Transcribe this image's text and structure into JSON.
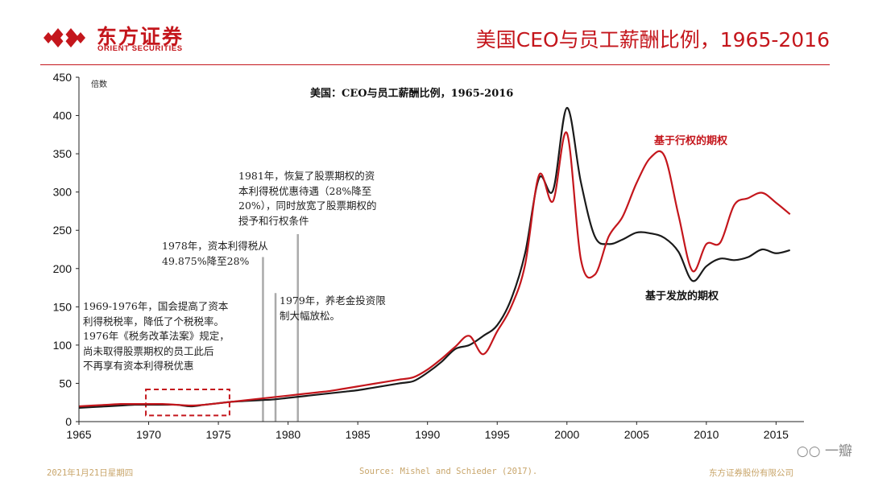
{
  "header": {
    "logo_cn": "东方证券",
    "logo_en": "ORIENT SECURITIES",
    "slide_title": "美国CEO与员工薪酬比例，1965-2016",
    "brand_color": "#c4161c"
  },
  "chart_data": {
    "type": "line",
    "title": "美国：CEO与员工薪酬比例，1965-2016",
    "ylabel": "倍数",
    "xlabel": "",
    "xlim": [
      1965,
      2017
    ],
    "ylim": [
      0,
      450
    ],
    "x_ticks": [
      1965,
      1970,
      1975,
      1980,
      1985,
      1990,
      1995,
      2000,
      2005,
      2010,
      2015
    ],
    "y_ticks": [
      0,
      50,
      100,
      150,
      200,
      250,
      300,
      350,
      400,
      450
    ],
    "series": [
      {
        "name": "基于行权的期权",
        "color": "#c4161c",
        "x": [
          1965,
          1966,
          1967,
          1968,
          1969,
          1970,
          1971,
          1972,
          1973,
          1974,
          1975,
          1976,
          1977,
          1978,
          1979,
          1980,
          1981,
          1982,
          1983,
          1984,
          1985,
          1986,
          1987,
          1988,
          1989,
          1990,
          1991,
          1992,
          1993,
          1994,
          1995,
          1996,
          1997,
          1998,
          1999,
          2000,
          2001,
          2002,
          2003,
          2004,
          2005,
          2006,
          2007,
          2008,
          2009,
          2010,
          2011,
          2012,
          2013,
          2014,
          2015,
          2016
        ],
        "values": [
          20,
          21,
          22,
          23,
          23,
          23,
          23,
          22,
          21,
          22,
          24,
          26,
          28,
          30,
          32,
          34,
          36,
          38,
          40,
          43,
          46,
          49,
          52,
          55,
          58,
          68,
          82,
          98,
          112,
          88,
          118,
          150,
          205,
          322,
          288,
          377,
          212,
          192,
          242,
          268,
          312,
          345,
          347,
          270,
          197,
          232,
          234,
          283,
          292,
          299,
          286,
          271
        ]
      },
      {
        "name": "基于发放的期权",
        "color": "#1a1a1a",
        "x": [
          1965,
          1966,
          1967,
          1968,
          1969,
          1970,
          1971,
          1972,
          1973,
          1974,
          1975,
          1976,
          1977,
          1978,
          1979,
          1980,
          1981,
          1982,
          1983,
          1984,
          1985,
          1986,
          1987,
          1988,
          1989,
          1990,
          1991,
          1992,
          1993,
          1994,
          1995,
          1996,
          1997,
          1998,
          1999,
          2000,
          2001,
          2002,
          2003,
          2004,
          2005,
          2006,
          2007,
          2008,
          2009,
          2010,
          2011,
          2012,
          2013,
          2014,
          2015,
          2016
        ],
        "values": [
          18,
          19,
          20,
          21,
          22,
          22,
          22,
          22,
          20,
          22,
          24,
          26,
          27,
          28,
          29,
          31,
          33,
          35,
          37,
          39,
          41,
          44,
          47,
          50,
          53,
          64,
          78,
          95,
          100,
          112,
          126,
          160,
          220,
          318,
          302,
          410,
          313,
          242,
          232,
          238,
          247,
          246,
          240,
          222,
          184,
          203,
          213,
          211,
          215,
          225,
          220,
          224
        ]
      }
    ],
    "event_lines": [
      {
        "x": 1978.2,
        "y": 215
      },
      {
        "x": 1979.1,
        "y": 168
      },
      {
        "x": 1980.7,
        "y": 245
      }
    ],
    "highlight_box": {
      "x0": 1969.8,
      "x1": 1975.8,
      "y0": 8,
      "y1": 42
    }
  },
  "annotations": {
    "a1969": "1969-1976年，国会提高了资本\n利得税税率，降低了个税税率。\n1976年《税务改革法案》规定，\n尚未取得股票期权的员工此后\n不再享有资本利得税优惠",
    "a1978": "1978年，资本利得税从\n49.875%降至28%",
    "a1979": "1979年，养老金投资限\n制大幅放松。",
    "a1981": "1981年，恢复了股票期权的资\n本利得税优惠待遇（28%降至\n20%），同时放宽了股票期权的\n授予和行权条件"
  },
  "footer": {
    "date": "2021年1月21日星期四",
    "source": "Source: Mishel and Schieder (2017).",
    "company": "东方证券股份有限公司"
  },
  "watermark": "一瓣"
}
